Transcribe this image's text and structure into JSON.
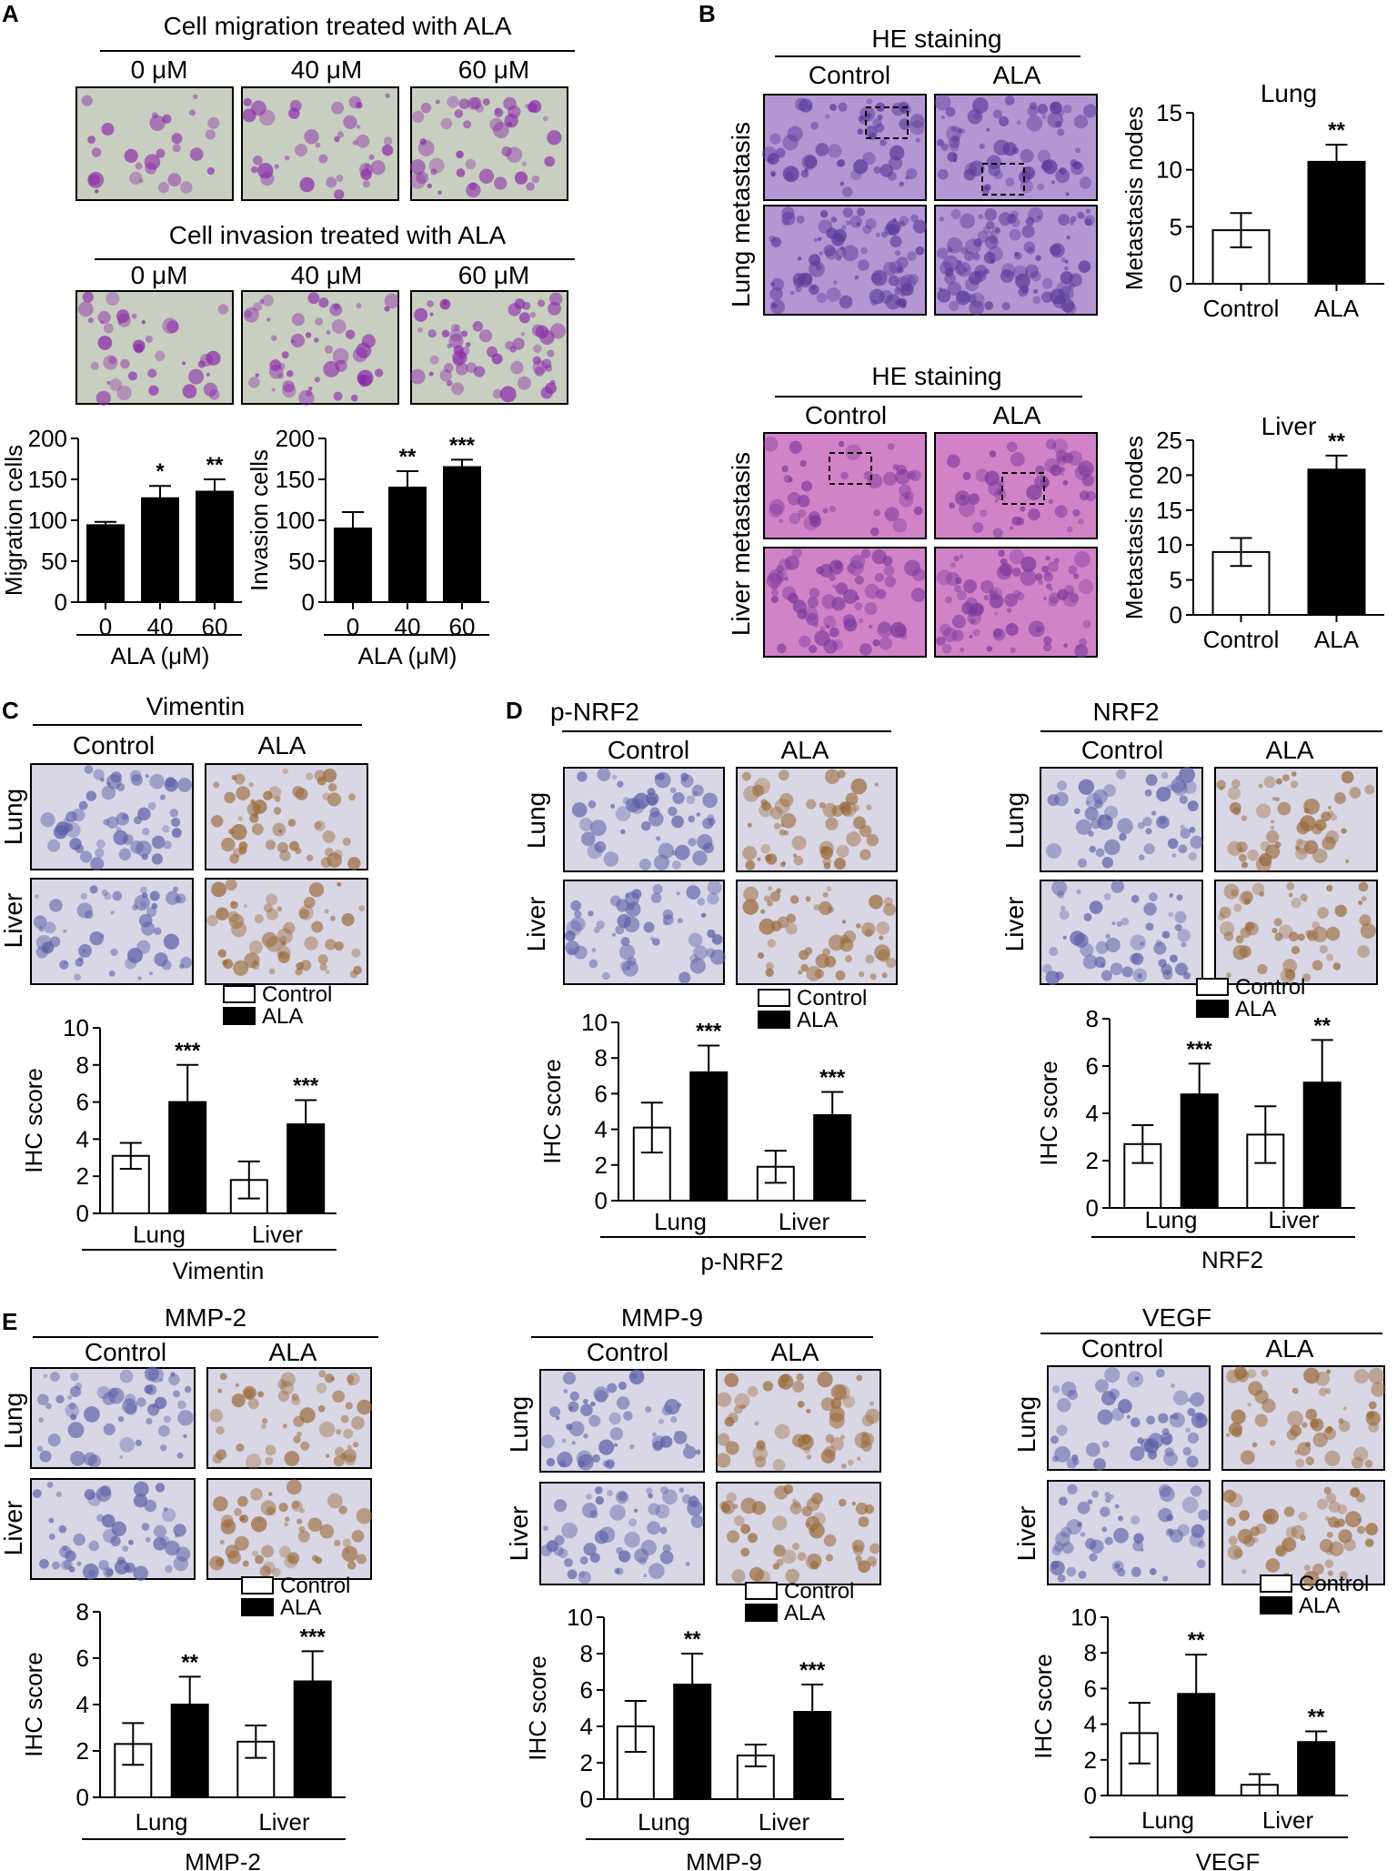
{
  "panels": {
    "A": {
      "letter": "A",
      "migration_header": "Cell migration treated with ALA",
      "invasion_header": "Cell invasion treated with ALA",
      "doses": [
        "0 μM",
        "40 μM",
        "60 μM"
      ]
    },
    "B": {
      "letter": "B",
      "he_header": "HE staining",
      "groups": [
        "Control",
        "ALA"
      ],
      "row_labels": [
        "Lung metastasis",
        "Liver metastasis"
      ]
    },
    "C": {
      "letter": "C",
      "header": "Vimentin",
      "groups": [
        "Control",
        "ALA"
      ],
      "rows": [
        "Lung",
        "Liver"
      ]
    },
    "D": {
      "letter": "D",
      "headers": [
        "p-NRF2",
        "NRF2"
      ],
      "groups": [
        "Control",
        "ALA"
      ],
      "rows": [
        "Lung",
        "Liver"
      ]
    },
    "E": {
      "letter": "E",
      "headers": [
        "MMP-2",
        "MMP-9",
        "VEGF"
      ],
      "groups": [
        "Control",
        "ALA"
      ],
      "rows": [
        "Lung",
        "Liver"
      ]
    }
  },
  "micrograph_palette": {
    "transwell_bg": "#c9cfc0",
    "transwell_stain": "#8a2aa8",
    "he_lung": "#b496d2",
    "he_lung_dark": "#5a3a9a",
    "he_liver": "#d283c8",
    "he_liver_dark": "#7a3a9a",
    "ihc_bg": "#d9d7e6",
    "ihc_nuclei": "#5a5fa6",
    "ihc_brown": "#9a6a3a"
  },
  "colors": {
    "control": "#ffffff",
    "ala": "#000000",
    "axis": "#000000"
  },
  "chart_data": [
    {
      "id": "migration",
      "type": "bar",
      "categories": [
        "0",
        "40",
        "60"
      ],
      "values": [
        94,
        127,
        135
      ],
      "errors": [
        4,
        15,
        15
      ],
      "significance": [
        "",
        "*",
        "**"
      ],
      "ylabel": "Migration cells",
      "xlabel": "ALA (μM)",
      "ylim": [
        0,
        200
      ],
      "yticks": [
        "0",
        "50",
        "100",
        "150",
        "200"
      ],
      "ytick_values": [
        0,
        50,
        100,
        150,
        200
      ],
      "grid": false
    },
    {
      "id": "invasion",
      "type": "bar",
      "categories": [
        "0",
        "40",
        "60"
      ],
      "values": [
        90,
        140,
        165
      ],
      "errors": [
        20,
        20,
        9
      ],
      "significance": [
        "",
        "**",
        "***"
      ],
      "ylabel": "Invasion cells",
      "xlabel": "ALA (μM)",
      "ylim": [
        0,
        200
      ],
      "yticks": [
        "0",
        "50",
        "100",
        "150",
        "200"
      ],
      "ytick_values": [
        0,
        50,
        100,
        150,
        200
      ],
      "grid": false
    },
    {
      "id": "lung_nodes",
      "type": "bar",
      "title": "Lung",
      "categories": [
        "Control",
        "ALA"
      ],
      "values": [
        4.7,
        10.7
      ],
      "errors": [
        1.5,
        1.5
      ],
      "significance": [
        "",
        "**"
      ],
      "ylabel": "Metastasis nodes",
      "ylim": [
        0,
        15
      ],
      "yticks": [
        "0",
        "5",
        "10",
        "15"
      ],
      "ytick_values": [
        0,
        5,
        10,
        15
      ],
      "grid": false
    },
    {
      "id": "liver_nodes",
      "type": "bar",
      "title": "Liver",
      "categories": [
        "Control",
        "ALA"
      ],
      "values": [
        9,
        20.8
      ],
      "errors": [
        2,
        2
      ],
      "significance": [
        "",
        "**"
      ],
      "ylabel": "Metastasis nodes",
      "ylim": [
        0,
        25
      ],
      "yticks": [
        "0",
        "5",
        "10",
        "15",
        "20",
        "25"
      ],
      "ytick_values": [
        0,
        5,
        10,
        15,
        20,
        25
      ],
      "grid": false
    },
    {
      "id": "vimentin",
      "type": "bar",
      "categories": [
        "Lung",
        "Liver"
      ],
      "group_label": "Vimentin",
      "series": [
        {
          "name": "Control",
          "values": [
            3.1,
            1.8
          ],
          "errors": [
            0.7,
            1.0
          ]
        },
        {
          "name": "ALA",
          "values": [
            6.0,
            4.8
          ],
          "errors": [
            2.0,
            1.3
          ]
        }
      ],
      "significance": {
        "ALA": [
          "***",
          "***"
        ]
      },
      "ylabel": "IHC score",
      "ylim": [
        0,
        10
      ],
      "yticks": [
        "0",
        "2",
        "4",
        "6",
        "8",
        "10"
      ],
      "ytick_values": [
        0,
        2,
        4,
        6,
        8,
        10
      ],
      "legend": "top-right",
      "grid": false
    },
    {
      "id": "p_nrf2",
      "type": "bar",
      "categories": [
        "Lung",
        "Liver"
      ],
      "group_label": "p-NRF2",
      "series": [
        {
          "name": "Control",
          "values": [
            4.1,
            1.9
          ],
          "errors": [
            1.4,
            0.9
          ]
        },
        {
          "name": "ALA",
          "values": [
            7.2,
            4.8
          ],
          "errors": [
            1.5,
            1.3
          ]
        }
      ],
      "significance": {
        "ALA": [
          "***",
          "***"
        ]
      },
      "ylabel": "IHC score",
      "ylim": [
        0,
        10
      ],
      "yticks": [
        "0",
        "2",
        "4",
        "6",
        "8",
        "10"
      ],
      "ytick_values": [
        0,
        2,
        4,
        6,
        8,
        10
      ],
      "legend": "top-right",
      "grid": false
    },
    {
      "id": "nrf2",
      "type": "bar",
      "categories": [
        "Lung",
        "Liver"
      ],
      "group_label": "NRF2",
      "series": [
        {
          "name": "Control",
          "values": [
            2.7,
            3.1
          ],
          "errors": [
            0.8,
            1.2
          ]
        },
        {
          "name": "ALA",
          "values": [
            4.8,
            5.3
          ],
          "errors": [
            1.3,
            1.8
          ]
        }
      ],
      "significance": {
        "ALA": [
          "***",
          "**"
        ]
      },
      "ylabel": "IHC score",
      "ylim": [
        0,
        8
      ],
      "yticks": [
        "0",
        "2",
        "4",
        "6",
        "8"
      ],
      "ytick_values": [
        0,
        2,
        4,
        6,
        8
      ],
      "legend": "top-right",
      "grid": false
    },
    {
      "id": "mmp2",
      "type": "bar",
      "categories": [
        "Lung",
        "Liver"
      ],
      "group_label": "MMP-2",
      "series": [
        {
          "name": "Control",
          "values": [
            2.3,
            2.4
          ],
          "errors": [
            0.9,
            0.7
          ]
        },
        {
          "name": "ALA",
          "values": [
            4.0,
            5.0
          ],
          "errors": [
            1.2,
            1.3
          ]
        }
      ],
      "significance": {
        "ALA": [
          "**",
          "***"
        ]
      },
      "ylabel": "IHC score",
      "ylim": [
        0,
        8
      ],
      "yticks": [
        "0",
        "2",
        "4",
        "6",
        "8"
      ],
      "ytick_values": [
        0,
        2,
        4,
        6,
        8
      ],
      "legend": "top-right",
      "grid": false
    },
    {
      "id": "mmp9",
      "type": "bar",
      "categories": [
        "Lung",
        "Liver"
      ],
      "group_label": "MMP-9",
      "series": [
        {
          "name": "Control",
          "values": [
            4.0,
            2.4
          ],
          "errors": [
            1.4,
            0.6
          ]
        },
        {
          "name": "ALA",
          "values": [
            6.3,
            4.8
          ],
          "errors": [
            1.7,
            1.5
          ]
        }
      ],
      "significance": {
        "ALA": [
          "**",
          "***"
        ]
      },
      "ylabel": "IHC score",
      "ylim": [
        0,
        10
      ],
      "yticks": [
        "0",
        "2",
        "4",
        "6",
        "8",
        "10"
      ],
      "ytick_values": [
        0,
        2,
        4,
        6,
        8,
        10
      ],
      "legend": "top-right",
      "grid": false
    },
    {
      "id": "vegf",
      "type": "bar",
      "categories": [
        "Lung",
        "Liver"
      ],
      "group_label": "VEGF",
      "series": [
        {
          "name": "Control",
          "values": [
            3.5,
            0.6
          ],
          "errors": [
            1.7,
            0.6
          ]
        },
        {
          "name": "ALA",
          "values": [
            5.7,
            3.0
          ],
          "errors": [
            2.2,
            0.6
          ]
        }
      ],
      "significance": {
        "ALA": [
          "**",
          "**"
        ]
      },
      "ylabel": "IHC score",
      "ylim": [
        0,
        10
      ],
      "yticks": [
        "0",
        "2",
        "4",
        "6",
        "8",
        "10"
      ],
      "ytick_values": [
        0,
        2,
        4,
        6,
        8,
        10
      ],
      "legend": "top-right",
      "grid": false
    }
  ]
}
